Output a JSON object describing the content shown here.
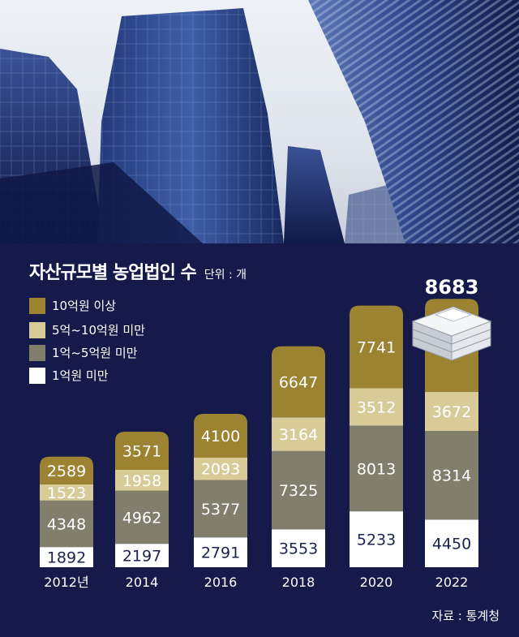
{
  "title": "자산규모별 농업법인 수",
  "unit": "단위 : 개",
  "source": "자료 : 통계청",
  "chart_data": {
    "type": "bar",
    "stacked": true,
    "categories": [
      "2012년",
      "2014",
      "2016",
      "2018",
      "2020",
      "2022"
    ],
    "series": [
      {
        "name": "1억원 미만",
        "color": "#ffffff",
        "values": [
          1892,
          2197,
          2791,
          3553,
          5233,
          4450
        ]
      },
      {
        "name": "1억~5억원 미만",
        "color": "#817e6c",
        "values": [
          4348,
          4962,
          5377,
          7325,
          8013,
          8314
        ]
      },
      {
        "name": "5억~10억원 미만",
        "color": "#d8cb98",
        "values": [
          1523,
          1958,
          2093,
          3164,
          3512,
          3672
        ]
      },
      {
        "name": "10억원 이상",
        "color": "#9c8332",
        "values": [
          2589,
          3571,
          4100,
          6647,
          7741,
          8683
        ]
      }
    ],
    "legend_position": "top-left"
  }
}
